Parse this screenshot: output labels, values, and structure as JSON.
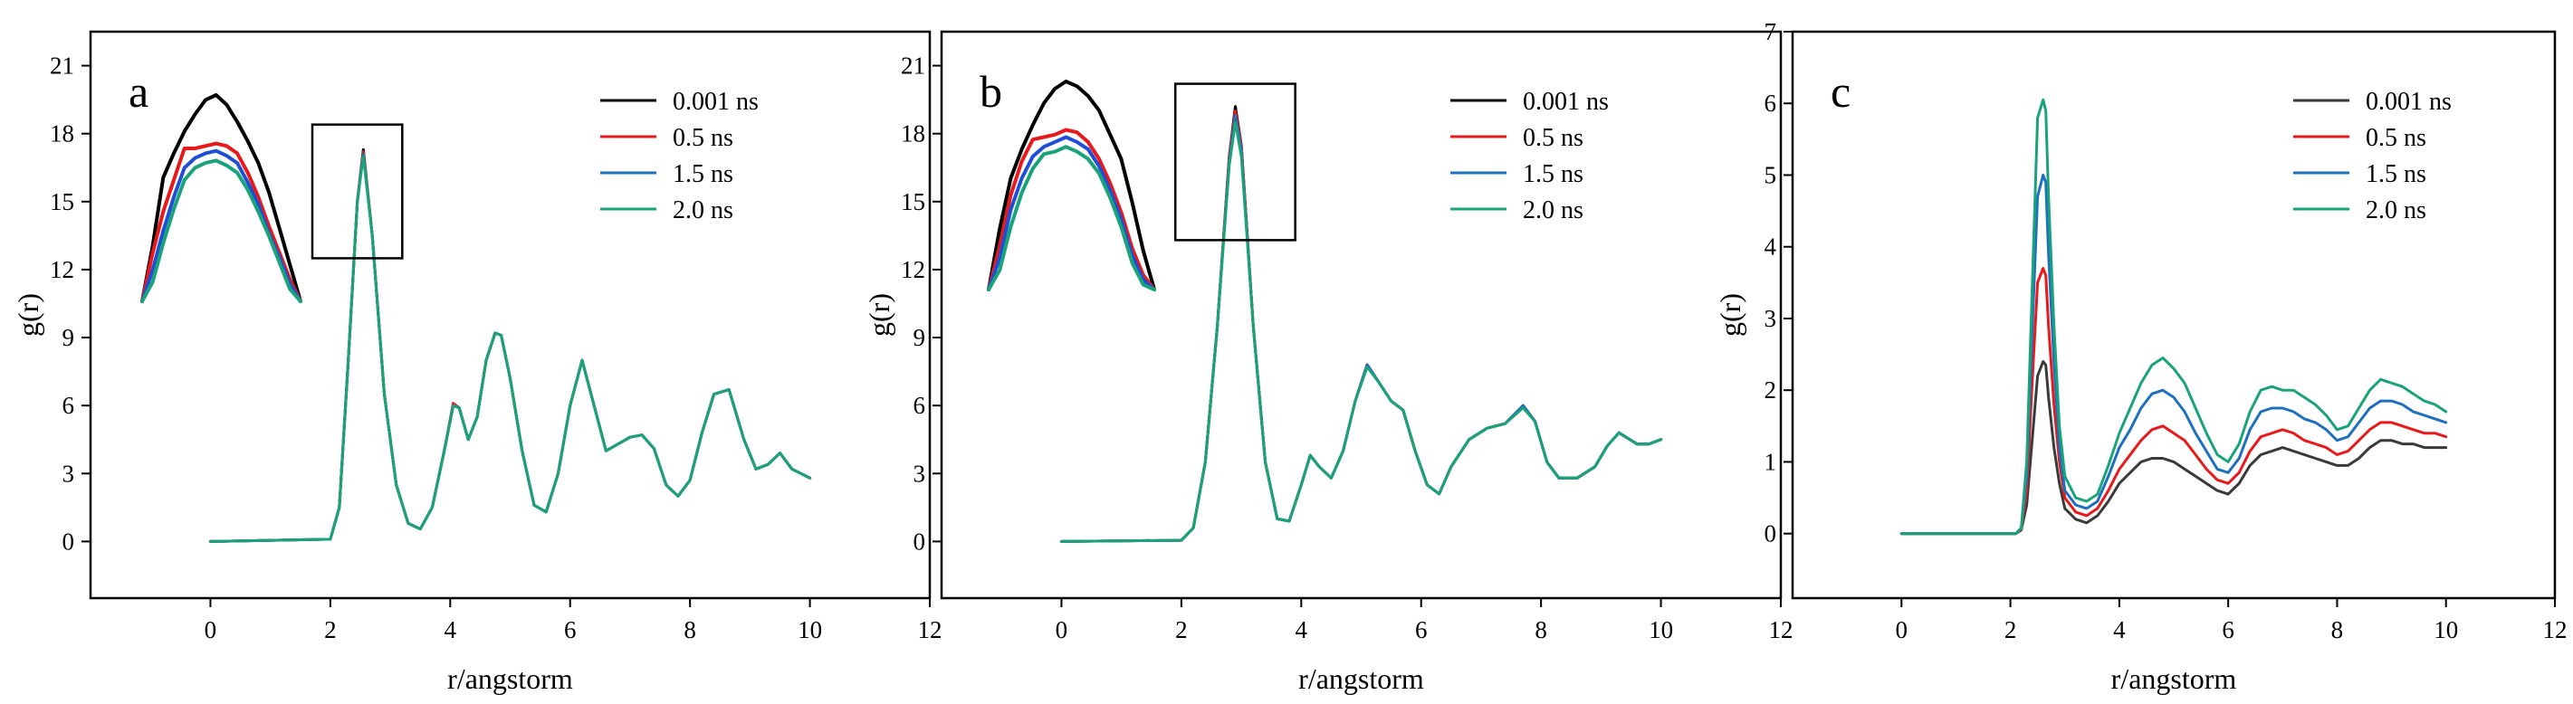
{
  "chart_data": [
    {
      "type": "line",
      "panel_label": "a",
      "xlabel": "r/angstorm",
      "ylabel": "g(r)",
      "xlim": [
        -2,
        12
      ],
      "ylim": [
        -2.5,
        22.5
      ],
      "xticks": [
        0,
        2,
        4,
        6,
        8,
        10,
        12
      ],
      "yticks": [
        0,
        3,
        6,
        9,
        12,
        15,
        18,
        21
      ],
      "legend": [
        "0.001 ns",
        "0.5 ns",
        "1.5 ns",
        "2.0 ns"
      ],
      "x": [
        0,
        2.0,
        2.15,
        2.3,
        2.45,
        2.55,
        2.7,
        2.9,
        3.1,
        3.3,
        3.5,
        3.7,
        3.9,
        4.05,
        4.15,
        4.3,
        4.45,
        4.6,
        4.75,
        4.85,
        5.0,
        5.2,
        5.4,
        5.6,
        5.8,
        6.0,
        6.2,
        6.4,
        6.6,
        6.8,
        7.0,
        7.2,
        7.4,
        7.6,
        7.8,
        8.0,
        8.2,
        8.4,
        8.65,
        8.9,
        9.1,
        9.3,
        9.5,
        9.7,
        10.0
      ],
      "series": [
        {
          "name": "0.001 ns",
          "color": "#000000",
          "values": [
            0,
            0.1,
            1.5,
            8.0,
            15.0,
            17.3,
            13.5,
            6.5,
            2.5,
            0.8,
            0.55,
            1.5,
            4.0,
            6.0,
            5.9,
            4.5,
            5.5,
            8.0,
            9.2,
            9.1,
            7.2,
            4.0,
            1.6,
            1.3,
            3.0,
            6.0,
            8.0,
            6.0,
            4.0,
            4.3,
            4.6,
            4.7,
            4.1,
            2.5,
            2.0,
            2.7,
            4.8,
            6.5,
            6.7,
            4.5,
            3.2,
            3.4,
            3.9,
            3.2,
            2.8
          ]
        },
        {
          "name": "0.5 ns",
          "color": "#e8191b",
          "values": [
            0,
            0.1,
            1.5,
            8.0,
            15.0,
            17.2,
            13.5,
            6.5,
            2.5,
            0.8,
            0.55,
            1.5,
            4.0,
            6.1,
            5.9,
            4.5,
            5.5,
            8.0,
            9.2,
            9.1,
            7.2,
            4.0,
            1.6,
            1.3,
            3.0,
            6.0,
            8.0,
            6.0,
            4.0,
            4.3,
            4.6,
            4.7,
            4.1,
            2.5,
            2.0,
            2.7,
            4.8,
            6.5,
            6.7,
            4.5,
            3.2,
            3.4,
            3.9,
            3.2,
            2.8
          ]
        },
        {
          "name": "1.5 ns",
          "color": "#1f6fbf",
          "values": [
            0,
            0.1,
            1.5,
            8.0,
            15.0,
            17.1,
            13.5,
            6.5,
            2.5,
            0.8,
            0.55,
            1.5,
            4.0,
            6.0,
            5.9,
            4.5,
            5.5,
            8.0,
            9.2,
            9.1,
            7.2,
            4.0,
            1.6,
            1.3,
            3.0,
            6.0,
            8.0,
            6.0,
            4.0,
            4.3,
            4.6,
            4.7,
            4.1,
            2.5,
            2.0,
            2.7,
            4.8,
            6.5,
            6.7,
            4.5,
            3.2,
            3.4,
            3.9,
            3.2,
            2.8
          ]
        },
        {
          "name": "2.0 ns",
          "color": "#1aa37a",
          "values": [
            0,
            0.1,
            1.5,
            8.0,
            15.0,
            17.0,
            13.5,
            6.5,
            2.5,
            0.8,
            0.55,
            1.5,
            4.0,
            6.0,
            5.9,
            4.5,
            5.5,
            8.0,
            9.2,
            9.1,
            7.2,
            4.0,
            1.6,
            1.3,
            3.0,
            6.0,
            8.0,
            6.0,
            4.0,
            4.3,
            4.6,
            4.7,
            4.1,
            2.5,
            2.0,
            2.7,
            4.8,
            6.5,
            6.7,
            4.5,
            3.2,
            3.4,
            3.9,
            3.2,
            2.8
          ]
        }
      ],
      "inset_box": {
        "x": [
          1.7,
          3.2
        ],
        "y": [
          12.5,
          18.4
        ]
      },
      "inset": {
        "x": [
          -1.0,
          -0.8,
          -0.6,
          -0.4,
          -0.2,
          0.0,
          0.2,
          0.4,
          0.6,
          0.8,
          1.0,
          1.2,
          1.4,
          1.6,
          1.8,
          2.0
        ],
        "series": [
          {
            "name": "0.001 ns",
            "color": "#000000",
            "values": [
              10.5,
              12.8,
              15.6,
              16.6,
              17.5,
              18.2,
              18.8,
              19.0,
              18.6,
              17.9,
              17.1,
              16.2,
              15.0,
              13.5,
              12.0,
              10.5
            ]
          },
          {
            "name": "0.5 ns",
            "color": "#e8191b",
            "values": [
              10.5,
              12.5,
              14.2,
              15.5,
              16.8,
              16.8,
              16.9,
              17.0,
              16.9,
              16.6,
              15.8,
              14.8,
              13.6,
              12.5,
              11.4,
              10.5
            ]
          },
          {
            "name": "1.5 ns",
            "color": "#1f4fd6",
            "values": [
              10.5,
              11.8,
              13.4,
              14.8,
              16.0,
              16.4,
              16.6,
              16.7,
              16.5,
              16.2,
              15.4,
              14.5,
              13.3,
              12.3,
              11.2,
              10.5
            ]
          },
          {
            "name": "2.0 ns",
            "color": "#1aa37a",
            "values": [
              10.5,
              11.3,
              12.9,
              14.3,
              15.5,
              16.0,
              16.2,
              16.3,
              16.1,
              15.8,
              15.1,
              14.2,
              13.2,
              12.1,
              11.0,
              10.5
            ]
          }
        ]
      }
    },
    {
      "type": "line",
      "panel_label": "b",
      "xlabel": "r/angstorm",
      "ylabel": "g(r)",
      "xlim": [
        -2,
        12
      ],
      "ylim": [
        -2.5,
        22.5
      ],
      "xticks": [
        0,
        2,
        4,
        6,
        8,
        10,
        12
      ],
      "yticks": [
        0,
        3,
        6,
        9,
        12,
        15,
        18,
        21
      ],
      "legend": [
        "0.001 ns",
        "0.5 ns",
        "1.5 ns",
        "2.0 ns"
      ],
      "x": [
        0,
        2.0,
        2.2,
        2.4,
        2.6,
        2.8,
        2.9,
        3.0,
        3.2,
        3.4,
        3.6,
        3.8,
        4.0,
        4.15,
        4.3,
        4.5,
        4.7,
        4.9,
        5.1,
        5.3,
        5.5,
        5.7,
        5.9,
        6.1,
        6.3,
        6.5,
        6.8,
        7.1,
        7.4,
        7.7,
        7.9,
        8.1,
        8.3,
        8.6,
        8.9,
        9.1,
        9.3,
        9.6,
        9.8,
        10.0
      ],
      "series": [
        {
          "name": "0.001 ns",
          "color": "#000000",
          "values": [
            0,
            0.05,
            0.6,
            3.5,
            9.5,
            17.0,
            19.2,
            17.5,
            9.5,
            3.5,
            1.0,
            0.9,
            2.5,
            3.8,
            3.3,
            2.8,
            4.0,
            6.2,
            7.8,
            7.0,
            6.2,
            5.8,
            4.0,
            2.5,
            2.1,
            3.3,
            4.5,
            5.0,
            5.2,
            6.0,
            5.3,
            3.5,
            2.8,
            2.8,
            3.3,
            4.2,
            4.8,
            4.3,
            4.3,
            4.5
          ]
        },
        {
          "name": "0.5 ns",
          "color": "#e8191b",
          "values": [
            0,
            0.05,
            0.6,
            3.5,
            9.5,
            17.0,
            19.0,
            17.5,
            9.5,
            3.5,
            1.0,
            0.9,
            2.5,
            3.8,
            3.3,
            2.8,
            4.0,
            6.2,
            7.8,
            7.0,
            6.2,
            5.8,
            4.0,
            2.5,
            2.1,
            3.3,
            4.5,
            5.0,
            5.2,
            6.0,
            5.3,
            3.5,
            2.8,
            2.8,
            3.3,
            4.2,
            4.8,
            4.3,
            4.3,
            4.5
          ]
        },
        {
          "name": "1.5 ns",
          "color": "#1f6fbf",
          "values": [
            0,
            0.05,
            0.6,
            3.5,
            9.5,
            16.8,
            18.8,
            17.3,
            9.5,
            3.5,
            1.0,
            0.9,
            2.5,
            3.8,
            3.3,
            2.8,
            4.0,
            6.2,
            7.8,
            7.0,
            6.2,
            5.8,
            4.0,
            2.5,
            2.1,
            3.3,
            4.5,
            5.0,
            5.2,
            6.0,
            5.3,
            3.5,
            2.8,
            2.8,
            3.3,
            4.2,
            4.8,
            4.3,
            4.3,
            4.5
          ]
        },
        {
          "name": "2.0 ns",
          "color": "#1aa37a",
          "values": [
            0,
            0.05,
            0.6,
            3.5,
            9.5,
            16.6,
            18.5,
            17.0,
            9.5,
            3.5,
            1.0,
            0.9,
            2.5,
            3.8,
            3.3,
            2.8,
            4.0,
            6.2,
            7.7,
            7.0,
            6.2,
            5.8,
            4.0,
            2.5,
            2.1,
            3.3,
            4.5,
            5.0,
            5.2,
            5.9,
            5.3,
            3.5,
            2.8,
            2.8,
            3.3,
            4.2,
            4.8,
            4.3,
            4.3,
            4.5
          ]
        }
      ],
      "inset_box": {
        "x": [
          1.9,
          3.9
        ],
        "y": [
          13.3,
          20.2
        ]
      },
      "inset": {
        "x": [
          -1.0,
          -0.8,
          -0.6,
          -0.4,
          -0.2,
          0.0,
          0.2,
          0.4,
          0.6,
          0.8,
          1.0,
          1.2,
          1.4,
          1.6,
          1.8,
          2.0
        ],
        "series": [
          {
            "name": "0.001 ns",
            "color": "#000000",
            "values": [
              11.0,
              13.5,
              15.6,
              16.8,
              17.8,
              18.7,
              19.3,
              19.6,
              19.4,
              19.0,
              18.4,
              17.4,
              16.4,
              14.6,
              12.6,
              11.0
            ]
          },
          {
            "name": "0.5 ns",
            "color": "#e8191b",
            "values": [
              11.0,
              12.8,
              14.9,
              16.3,
              17.2,
              17.3,
              17.4,
              17.6,
              17.5,
              17.1,
              16.4,
              15.4,
              14.2,
              12.7,
              11.6,
              11.0
            ]
          },
          {
            "name": "1.5 ns",
            "color": "#1f4fd6",
            "values": [
              11.0,
              12.3,
              14.3,
              15.6,
              16.5,
              16.9,
              17.1,
              17.3,
              17.1,
              16.8,
              16.1,
              15.1,
              13.9,
              12.4,
              11.4,
              11.0
            ]
          },
          {
            "name": "2.0 ns",
            "color": "#1aa37a",
            "values": [
              11.0,
              11.8,
              13.6,
              15.0,
              16.0,
              16.6,
              16.7,
              16.9,
              16.7,
              16.4,
              15.8,
              14.8,
              13.6,
              12.1,
              11.2,
              11.0
            ]
          }
        ]
      }
    },
    {
      "type": "line",
      "panel_label": "c",
      "xlabel": "r/angstorm",
      "ylabel": "g(r)",
      "xlim": [
        -2,
        12
      ],
      "ylim": [
        -0.9,
        7.0
      ],
      "xticks": [
        0,
        2,
        4,
        6,
        8,
        10,
        12
      ],
      "yticks": [
        0,
        1,
        2,
        3,
        4,
        5,
        6,
        7
      ],
      "legend": [
        "0.001 ns",
        "0.5 ns",
        "1.5 ns",
        "2.0 ns"
      ],
      "x": [
        0,
        2.1,
        2.2,
        2.3,
        2.4,
        2.5,
        2.6,
        2.65,
        2.7,
        2.8,
        2.9,
        3.0,
        3.2,
        3.4,
        3.6,
        3.8,
        4.0,
        4.2,
        4.4,
        4.6,
        4.8,
        5.0,
        5.2,
        5.4,
        5.6,
        5.8,
        6.0,
        6.2,
        6.4,
        6.6,
        6.8,
        7.0,
        7.2,
        7.4,
        7.6,
        7.8,
        8.0,
        8.2,
        8.4,
        8.6,
        8.8,
        9.0,
        9.2,
        9.4,
        9.6,
        9.8,
        10.0
      ],
      "series": [
        {
          "name": "0.001 ns",
          "color": "#3a3a3a",
          "values": [
            0,
            0,
            0.05,
            0.4,
            1.3,
            2.2,
            2.4,
            2.35,
            1.9,
            1.2,
            0.7,
            0.35,
            0.2,
            0.15,
            0.25,
            0.45,
            0.7,
            0.85,
            1.0,
            1.05,
            1.05,
            1.0,
            0.9,
            0.8,
            0.7,
            0.6,
            0.55,
            0.7,
            0.95,
            1.1,
            1.15,
            1.2,
            1.15,
            1.1,
            1.05,
            1.0,
            0.95,
            0.95,
            1.05,
            1.2,
            1.3,
            1.3,
            1.25,
            1.25,
            1.2,
            1.2,
            1.2
          ]
        },
        {
          "name": "0.5 ns",
          "color": "#e8191b",
          "values": [
            0,
            0,
            0.06,
            0.6,
            2.1,
            3.5,
            3.7,
            3.6,
            2.9,
            1.8,
            1.0,
            0.5,
            0.3,
            0.25,
            0.35,
            0.6,
            0.9,
            1.1,
            1.3,
            1.45,
            1.5,
            1.4,
            1.3,
            1.1,
            0.9,
            0.75,
            0.7,
            0.85,
            1.15,
            1.35,
            1.4,
            1.45,
            1.4,
            1.3,
            1.25,
            1.2,
            1.1,
            1.15,
            1.3,
            1.45,
            1.55,
            1.55,
            1.5,
            1.45,
            1.4,
            1.4,
            1.35
          ]
        },
        {
          "name": "1.5 ns",
          "color": "#1f6fbf",
          "values": [
            0,
            0,
            0.07,
            0.8,
            2.8,
            4.7,
            5.0,
            4.9,
            3.9,
            2.4,
            1.2,
            0.6,
            0.4,
            0.35,
            0.45,
            0.8,
            1.2,
            1.45,
            1.75,
            1.95,
            2.0,
            1.9,
            1.7,
            1.4,
            1.15,
            0.9,
            0.85,
            1.05,
            1.45,
            1.7,
            1.75,
            1.75,
            1.7,
            1.6,
            1.55,
            1.45,
            1.3,
            1.35,
            1.55,
            1.75,
            1.85,
            1.85,
            1.8,
            1.7,
            1.65,
            1.6,
            1.55
          ]
        },
        {
          "name": "2.0 ns",
          "color": "#1aa37a",
          "values": [
            0,
            0,
            0.08,
            1.0,
            3.4,
            5.8,
            6.05,
            5.9,
            4.7,
            2.9,
            1.5,
            0.8,
            0.5,
            0.45,
            0.55,
            0.95,
            1.4,
            1.75,
            2.1,
            2.35,
            2.45,
            2.3,
            2.1,
            1.75,
            1.4,
            1.1,
            1.0,
            1.25,
            1.7,
            2.0,
            2.05,
            2.0,
            2.0,
            1.9,
            1.8,
            1.65,
            1.45,
            1.5,
            1.75,
            2.0,
            2.15,
            2.1,
            2.05,
            1.95,
            1.85,
            1.8,
            1.7
          ]
        }
      ]
    }
  ]
}
